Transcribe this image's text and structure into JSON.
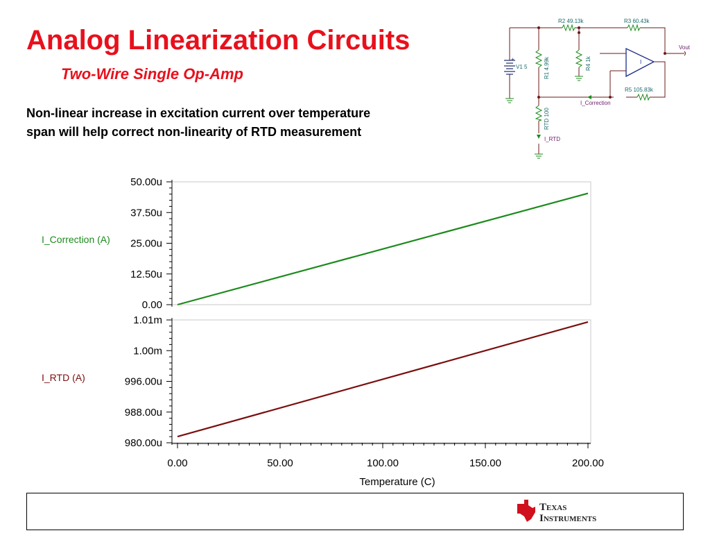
{
  "slide": {
    "title": "Analog Linearization Circuits",
    "subtitle": "Two-Wire Single Op-Amp",
    "body_line1": "Non-linear increase in excitation current over temperature",
    "body_line2": "span will help correct non-linearity of RTD measurement"
  },
  "schematic": {
    "labels": {
      "r2": "R2 49.13k",
      "r3": "R3 60.43k",
      "r1": "R1 4.99k",
      "r4": "R4 1k",
      "r5": "R5 105.83k",
      "v1": "V1 5",
      "rtd": "RTD 100",
      "vout": "Vout",
      "i_correction": "I_Correction",
      "i_rtd": "I_RTD",
      "plus": "+",
      "opamp": "I"
    }
  },
  "logo": {
    "line1": "Texas",
    "line2": "Instruments"
  },
  "colors": {
    "title": "#e8101c",
    "series_correction": "#1b8a1b",
    "series_rtd": "#7a0e0e"
  },
  "chart_data": [
    {
      "type": "line",
      "ylabel": "I_Correction (A)",
      "x": [
        0,
        200
      ],
      "y": [
        0.0,
        45.3
      ],
      "y_units": "u",
      "ylim": [
        0,
        50
      ],
      "yticks": [
        "50.00u",
        "37.50u",
        "25.00u",
        "12.50u",
        "0.00"
      ],
      "grid": false
    },
    {
      "type": "line",
      "ylabel": "I_RTD (A)",
      "x": [
        0,
        200
      ],
      "y": [
        981.5,
        1009.5
      ],
      "y_units": "u",
      "ylim": [
        980,
        1010
      ],
      "yticks": [
        "1.01m",
        "1.00m",
        "996.00u",
        "988.00u",
        "980.00u"
      ],
      "xticks": [
        "0.00",
        "50.00",
        "100.00",
        "150.00",
        "200.00"
      ],
      "xlabel": "Temperature (C)",
      "grid": false
    }
  ]
}
